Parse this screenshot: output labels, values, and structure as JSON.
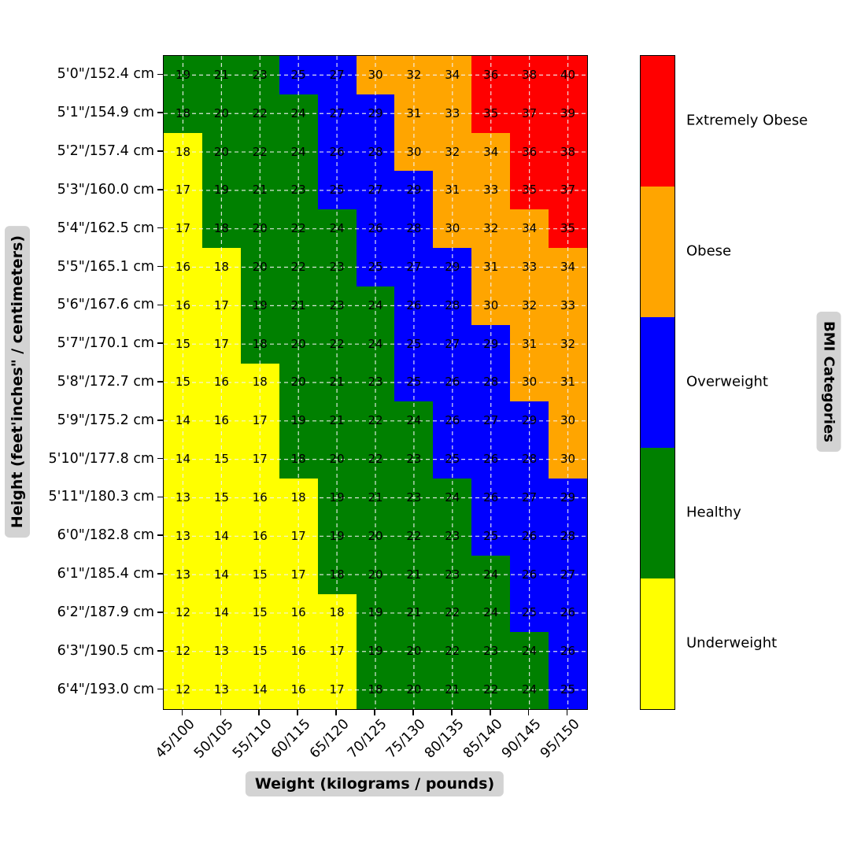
{
  "chart_data": {
    "type": "heatmap",
    "title": "",
    "xlabel": "Weight (kilograms / pounds)",
    "ylabel": "Height (feet'inches\" / centimeters)",
    "legend_title": "BMI Categories",
    "x_ticks": [
      "45/100",
      "50/105",
      "55/110",
      "60/115",
      "65/120",
      "70/125",
      "75/130",
      "80/135",
      "85/140",
      "90/145",
      "95/150"
    ],
    "y_ticks": [
      "5'0\"/152.4 cm",
      "5'1\"/154.9 cm",
      "5'2\"/157.4 cm",
      "5'3\"/160.0 cm",
      "5'4\"/162.5 cm",
      "5'5\"/165.1 cm",
      "5'6\"/167.6 cm",
      "5'7\"/170.1 cm",
      "5'8\"/172.7 cm",
      "5'9\"/175.2 cm",
      "5'10\"/177.8 cm",
      "5'11\"/180.3 cm",
      "6'0\"/182.8 cm",
      "6'1\"/185.4 cm",
      "6'2\"/187.9 cm",
      "6'3\"/190.5 cm",
      "6'4\"/193.0 cm"
    ],
    "values": [
      [
        19,
        21,
        23,
        25,
        27,
        30,
        32,
        34,
        36,
        38,
        40
      ],
      [
        18,
        20,
        22,
        24,
        27,
        29,
        31,
        33,
        35,
        37,
        39
      ],
      [
        18,
        20,
        22,
        24,
        26,
        28,
        30,
        32,
        34,
        36,
        38
      ],
      [
        17,
        19,
        21,
        23,
        25,
        27,
        29,
        31,
        33,
        35,
        37
      ],
      [
        17,
        18,
        20,
        22,
        24,
        26,
        28,
        30,
        32,
        34,
        35
      ],
      [
        16,
        18,
        20,
        22,
        23,
        25,
        27,
        29,
        31,
        33,
        34
      ],
      [
        16,
        17,
        19,
        21,
        23,
        24,
        26,
        28,
        30,
        32,
        33
      ],
      [
        15,
        17,
        18,
        20,
        22,
        24,
        25,
        27,
        29,
        31,
        32
      ],
      [
        15,
        16,
        18,
        20,
        21,
        23,
        25,
        26,
        28,
        30,
        31
      ],
      [
        14,
        16,
        17,
        19,
        21,
        22,
        24,
        26,
        27,
        29,
        30
      ],
      [
        14,
        15,
        17,
        18,
        20,
        22,
        23,
        25,
        26,
        28,
        30
      ],
      [
        13,
        15,
        16,
        18,
        19,
        21,
        23,
        24,
        26,
        27,
        29
      ],
      [
        13,
        14,
        16,
        17,
        19,
        20,
        22,
        23,
        25,
        26,
        28
      ],
      [
        13,
        14,
        15,
        17,
        18,
        20,
        21,
        23,
        24,
        26,
        27
      ],
      [
        12,
        14,
        15,
        16,
        18,
        19,
        21,
        22,
        24,
        25,
        26
      ],
      [
        12,
        13,
        15,
        16,
        17,
        19,
        20,
        22,
        23,
        24,
        26
      ],
      [
        12,
        13,
        14,
        16,
        17,
        18,
        20,
        21,
        22,
        24,
        25
      ]
    ],
    "cell_categories": [
      [
        "h",
        "h",
        "h",
        "ow",
        "ow",
        "ob",
        "ob",
        "ob",
        "eo",
        "eo",
        "eo"
      ],
      [
        "h",
        "h",
        "h",
        "h",
        "ow",
        "ow",
        "ob",
        "ob",
        "eo",
        "eo",
        "eo"
      ],
      [
        "uw",
        "h",
        "h",
        "h",
        "ow",
        "ow",
        "ob",
        "ob",
        "ob",
        "eo",
        "eo"
      ],
      [
        "uw",
        "h",
        "h",
        "h",
        "ow",
        "ow",
        "ow",
        "ob",
        "ob",
        "eo",
        "eo"
      ],
      [
        "uw",
        "h",
        "h",
        "h",
        "h",
        "ow",
        "ow",
        "ob",
        "ob",
        "ob",
        "eo"
      ],
      [
        "uw",
        "uw",
        "h",
        "h",
        "h",
        "ow",
        "ow",
        "ow",
        "ob",
        "ob",
        "ob"
      ],
      [
        "uw",
        "uw",
        "h",
        "h",
        "h",
        "h",
        "ow",
        "ow",
        "ob",
        "ob",
        "ob"
      ],
      [
        "uw",
        "uw",
        "h",
        "h",
        "h",
        "h",
        "ow",
        "ow",
        "ow",
        "ob",
        "ob"
      ],
      [
        "uw",
        "uw",
        "uw",
        "h",
        "h",
        "h",
        "ow",
        "ow",
        "ow",
        "ob",
        "ob"
      ],
      [
        "uw",
        "uw",
        "uw",
        "h",
        "h",
        "h",
        "h",
        "ow",
        "ow",
        "ow",
        "ob"
      ],
      [
        "uw",
        "uw",
        "uw",
        "h",
        "h",
        "h",
        "h",
        "ow",
        "ow",
        "ow",
        "ob"
      ],
      [
        "uw",
        "uw",
        "uw",
        "uw",
        "h",
        "h",
        "h",
        "h",
        "ow",
        "ow",
        "ow"
      ],
      [
        "uw",
        "uw",
        "uw",
        "uw",
        "h",
        "h",
        "h",
        "h",
        "ow",
        "ow",
        "ow"
      ],
      [
        "uw",
        "uw",
        "uw",
        "uw",
        "h",
        "h",
        "h",
        "h",
        "h",
        "ow",
        "ow"
      ],
      [
        "uw",
        "uw",
        "uw",
        "uw",
        "uw",
        "h",
        "h",
        "h",
        "h",
        "ow",
        "ow"
      ],
      [
        "uw",
        "uw",
        "uw",
        "uw",
        "uw",
        "h",
        "h",
        "h",
        "h",
        "h",
        "ow"
      ],
      [
        "uw",
        "uw",
        "uw",
        "uw",
        "uw",
        "h",
        "h",
        "h",
        "h",
        "h",
        "ow"
      ]
    ],
    "category_colors": {
      "uw": "#ffff00",
      "h": "#008000",
      "ow": "#0000ff",
      "ob": "#ffa500",
      "eo": "#ff0000"
    },
    "legend": [
      {
        "key": "eo",
        "label": "Extremely Obese"
      },
      {
        "key": "ob",
        "label": "Obese"
      },
      {
        "key": "ow",
        "label": "Overweight"
      },
      {
        "key": "h",
        "label": "Healthy"
      },
      {
        "key": "uw",
        "label": "Underweight"
      }
    ],
    "grid": {
      "style": "dashed",
      "color": "#f2f2f2"
    },
    "legend_position": "right"
  }
}
